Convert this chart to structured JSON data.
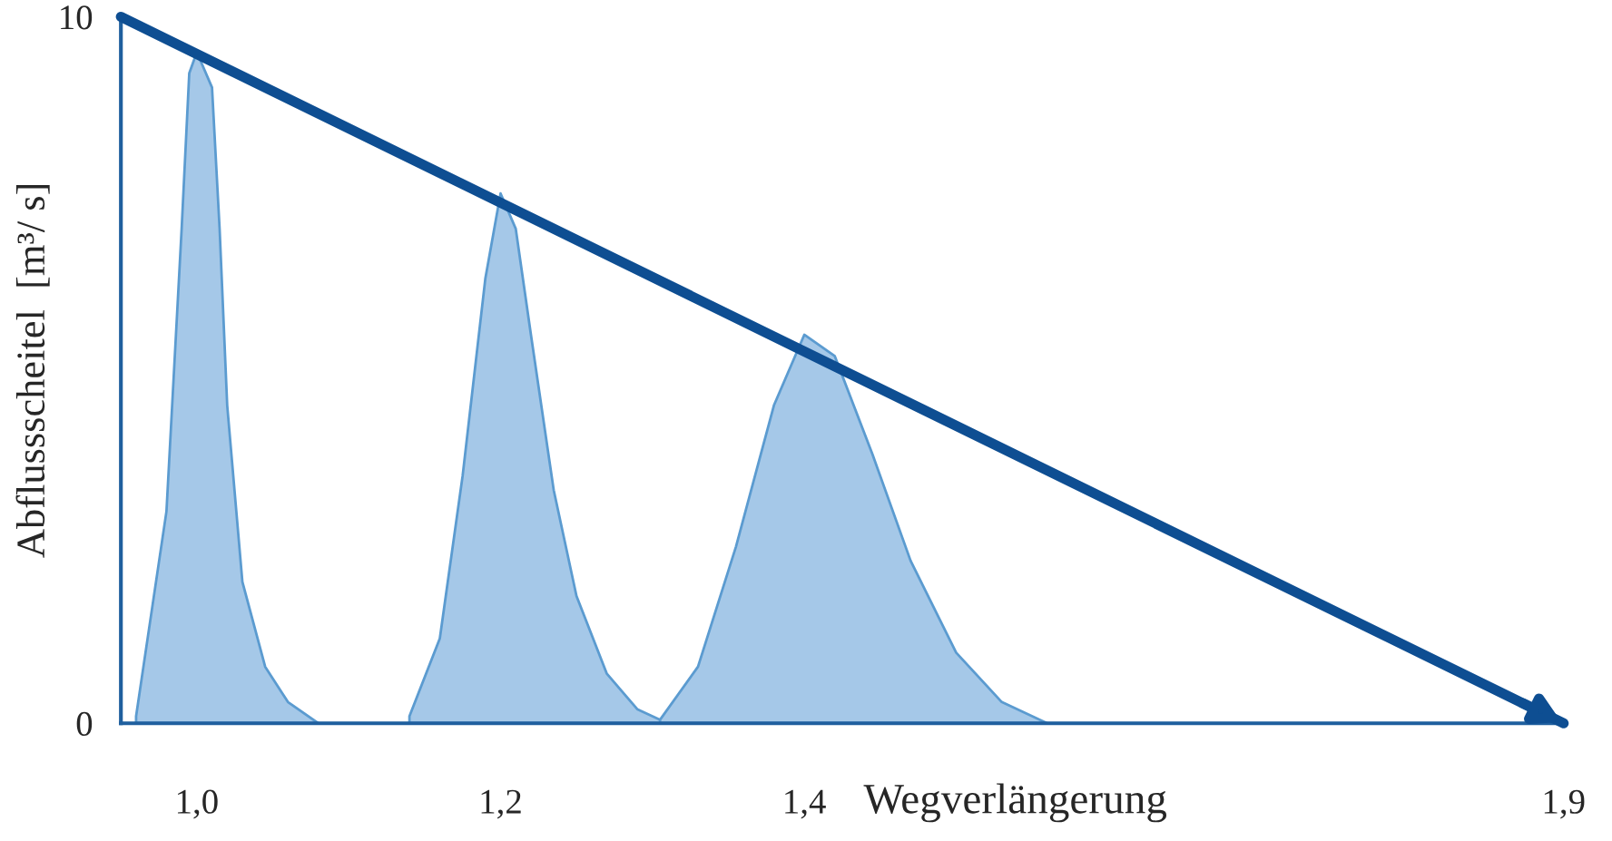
{
  "chart_data": {
    "type": "area",
    "xlabel": "Wegverlängerung",
    "ylabel": "Abflussscheitel  [m³/ s]",
    "xlim": [
      0.95,
      1.9
    ],
    "ylim": [
      0,
      10
    ],
    "xticks": [
      {
        "value": 1.0,
        "label": "1,0"
      },
      {
        "value": 1.2,
        "label": "1,2"
      },
      {
        "value": 1.4,
        "label": "1,4"
      },
      {
        "value": 1.9,
        "label": "1,9"
      }
    ],
    "yticks": [
      0,
      10
    ],
    "grid": false,
    "legend": false,
    "series": [
      {
        "color": "#a5c8e8",
        "x": [
          0.96,
          0.98,
          0.99,
          0.995,
          1.0,
          1.01,
          1.015,
          1.02,
          1.03,
          1.045,
          1.06,
          1.08
        ],
        "values": [
          0.1,
          3,
          7,
          9.2,
          9.5,
          9,
          7,
          4.5,
          2,
          0.8,
          0.3,
          0
        ]
      },
      {
        "color": "#a5c8e8",
        "x": [
          1.14,
          1.16,
          1.175,
          1.19,
          1.2,
          1.21,
          1.22,
          1.235,
          1.25,
          1.27,
          1.29,
          1.31
        ],
        "values": [
          0.1,
          1.2,
          3.5,
          6.3,
          7.5,
          7.0,
          5.5,
          3.3,
          1.8,
          0.7,
          0.2,
          0
        ]
      },
      {
        "color": "#a5c8e8",
        "x": [
          1.305,
          1.33,
          1.355,
          1.38,
          1.4,
          1.42,
          1.445,
          1.47,
          1.5,
          1.53,
          1.56
        ],
        "values": [
          0.05,
          0.8,
          2.5,
          4.5,
          5.5,
          5.2,
          3.8,
          2.3,
          1.0,
          0.3,
          0
        ]
      },
      {
        "type": "line",
        "color": "#0e4e92",
        "x": [
          0.95,
          1.9
        ],
        "values": [
          10,
          0
        ],
        "line_style": "solid",
        "marker": "none"
      }
    ]
  }
}
